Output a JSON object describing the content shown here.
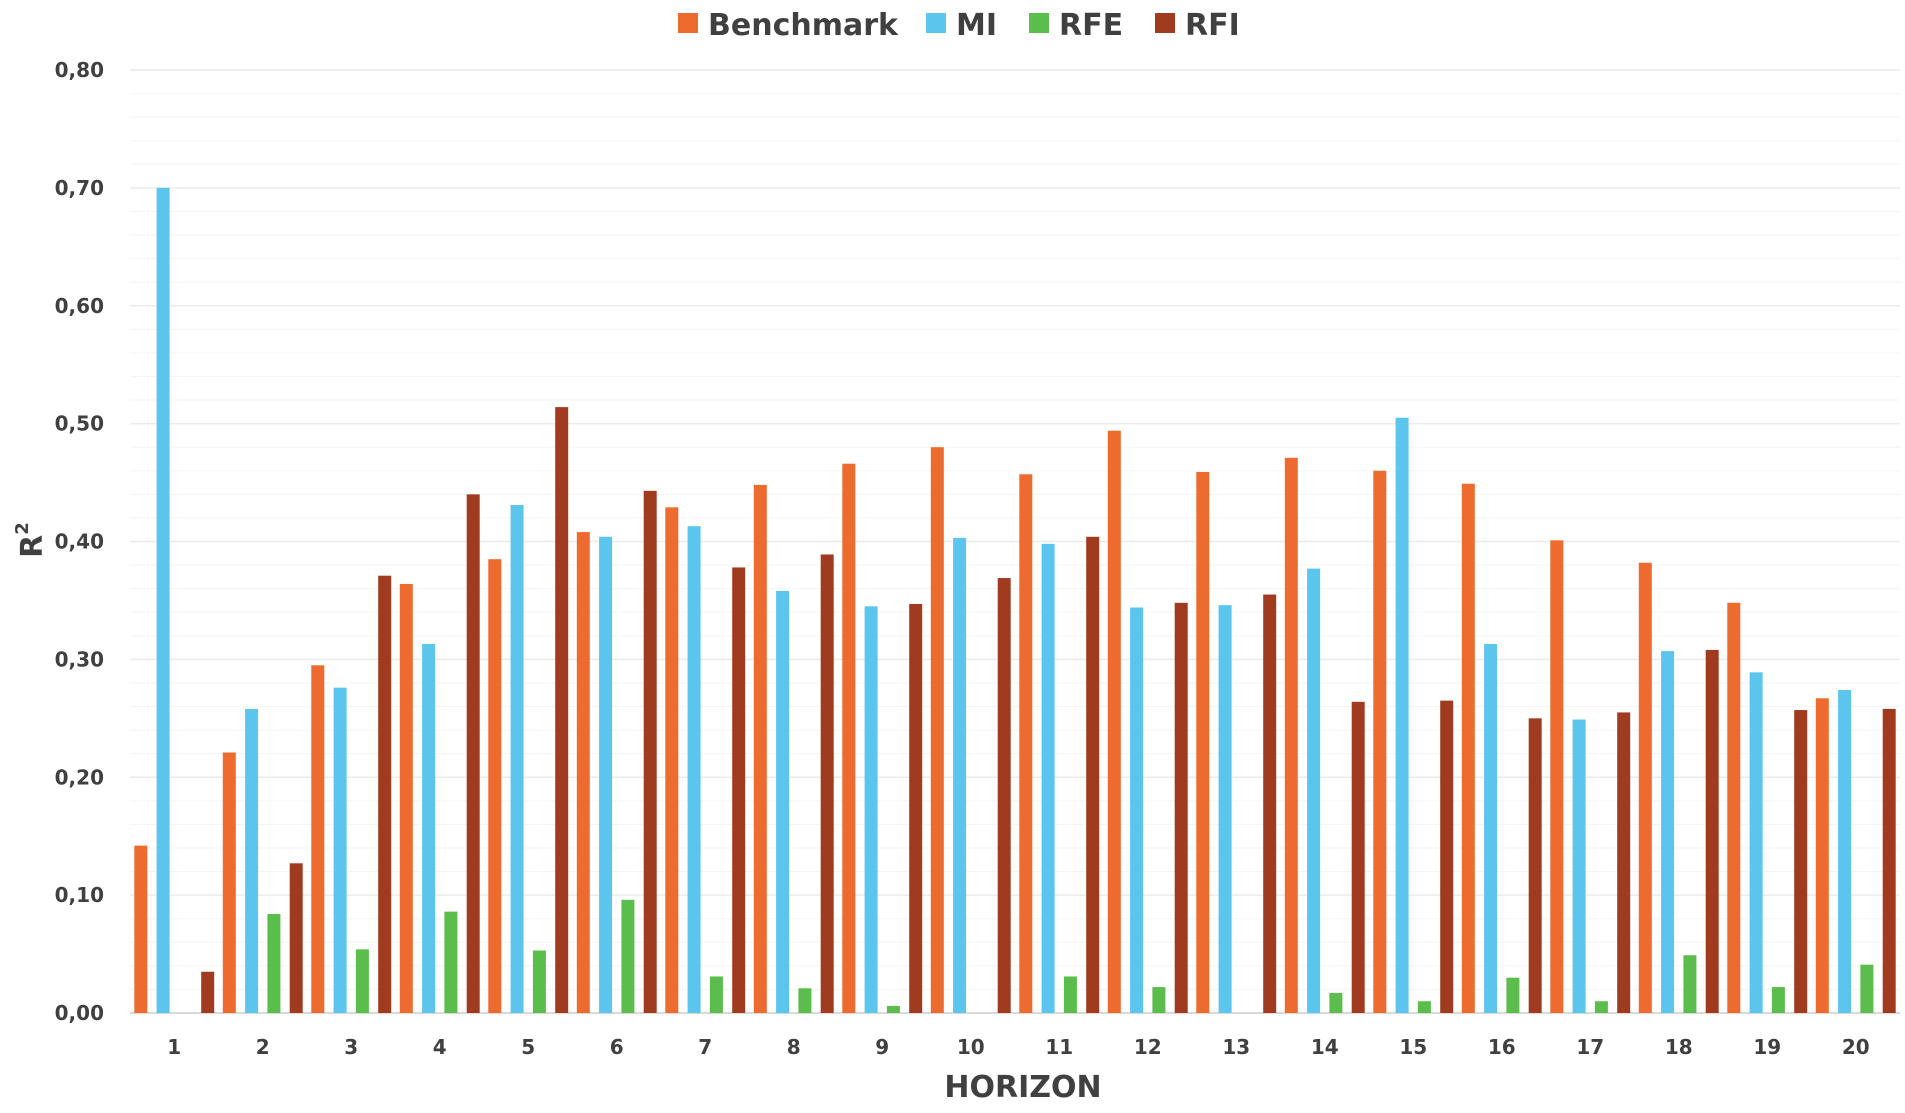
{
  "chart_data": {
    "type": "bar",
    "title": "",
    "xlabel": "HORIZON",
    "ylabel": "R",
    "ylabel_superscript": "2",
    "ylim": [
      0,
      0.8
    ],
    "yticks": [
      "0,00",
      "0,10",
      "0,20",
      "0,30",
      "0,40",
      "0,50",
      "0,60",
      "0,70",
      "0,80"
    ],
    "ytick_values": [
      0,
      0.1,
      0.2,
      0.3,
      0.4,
      0.5,
      0.6,
      0.7,
      0.8
    ],
    "grid": true,
    "legend_position": "top-center",
    "categories": [
      "1",
      "2",
      "3",
      "4",
      "5",
      "6",
      "7",
      "8",
      "9",
      "10",
      "11",
      "12",
      "13",
      "14",
      "15",
      "16",
      "17",
      "18",
      "19",
      "20"
    ],
    "series": [
      {
        "name": "Benchmark",
        "color": "#ED6B2F",
        "values": [
          0.142,
          0.221,
          0.295,
          0.364,
          0.385,
          0.408,
          0.429,
          0.448,
          0.466,
          0.48,
          0.457,
          0.494,
          0.459,
          0.471,
          0.46,
          0.449,
          0.401,
          0.382,
          0.348,
          0.267
        ]
      },
      {
        "name": "MI",
        "color": "#5BC5EE",
        "values": [
          0.7,
          0.258,
          0.276,
          0.313,
          0.431,
          0.404,
          0.413,
          0.358,
          0.345,
          0.403,
          0.398,
          0.344,
          0.346,
          0.377,
          0.505,
          0.313,
          0.249,
          0.307,
          0.289,
          0.274
        ]
      },
      {
        "name": "RFE",
        "color": "#5BBD4C",
        "values": [
          0.0,
          0.084,
          0.054,
          0.086,
          0.053,
          0.096,
          0.031,
          0.021,
          0.006,
          0.0,
          0.031,
          0.022,
          0.0,
          0.017,
          0.01,
          0.03,
          0.01,
          0.049,
          0.022,
          0.041
        ]
      },
      {
        "name": "RFI",
        "color": "#A03B1F",
        "values": [
          0.035,
          0.127,
          0.371,
          0.44,
          0.514,
          0.443,
          0.378,
          0.389,
          0.347,
          0.369,
          0.404,
          0.348,
          0.355,
          0.264,
          0.265,
          0.25,
          0.255,
          0.308,
          0.257,
          0.258
        ]
      }
    ]
  }
}
